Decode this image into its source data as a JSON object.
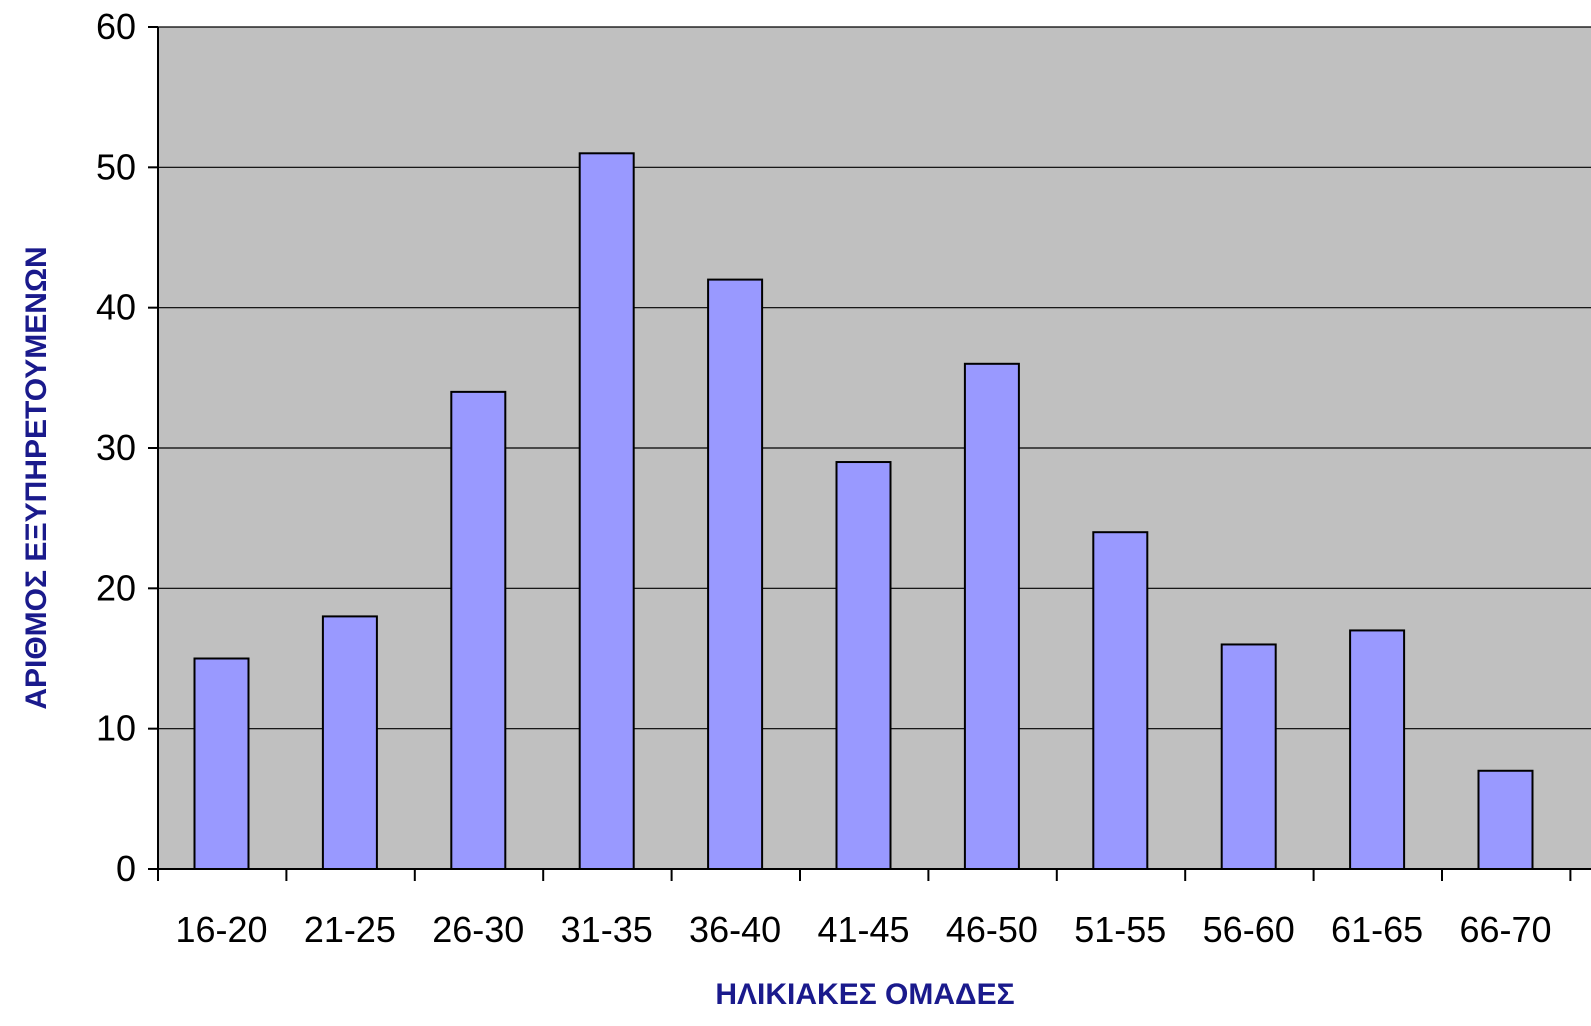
{
  "chart_data": {
    "type": "bar",
    "title": "",
    "xlabel": "ΗΛΙΚΙΑΚΕΣ ΟΜΑΔΕΣ",
    "ylabel": "ΑΡΙΘΜΟΣ ΕΞΥΠΗΡΕΤΟΥΜΕΝΩΝ",
    "categories": [
      "16-20",
      "21-25",
      "26-30",
      "31-35",
      "36-40",
      "41-45",
      "46-50",
      "51-55",
      "56-60",
      "61-65",
      "66-70"
    ],
    "values": [
      15,
      18,
      34,
      51,
      42,
      29,
      36,
      24,
      16,
      17,
      7
    ],
    "ylim": [
      0,
      60
    ],
    "yticks": [
      "0",
      "10",
      "20",
      "30",
      "40",
      "50",
      "60"
    ],
    "grid": true,
    "legend": "none",
    "colors": {
      "plot_background": "#c0c0c0",
      "bar_fill": "#9999ff",
      "bar_stroke": "#000000",
      "gridline": "#000000",
      "axis_title": "#1a1a8c"
    }
  }
}
